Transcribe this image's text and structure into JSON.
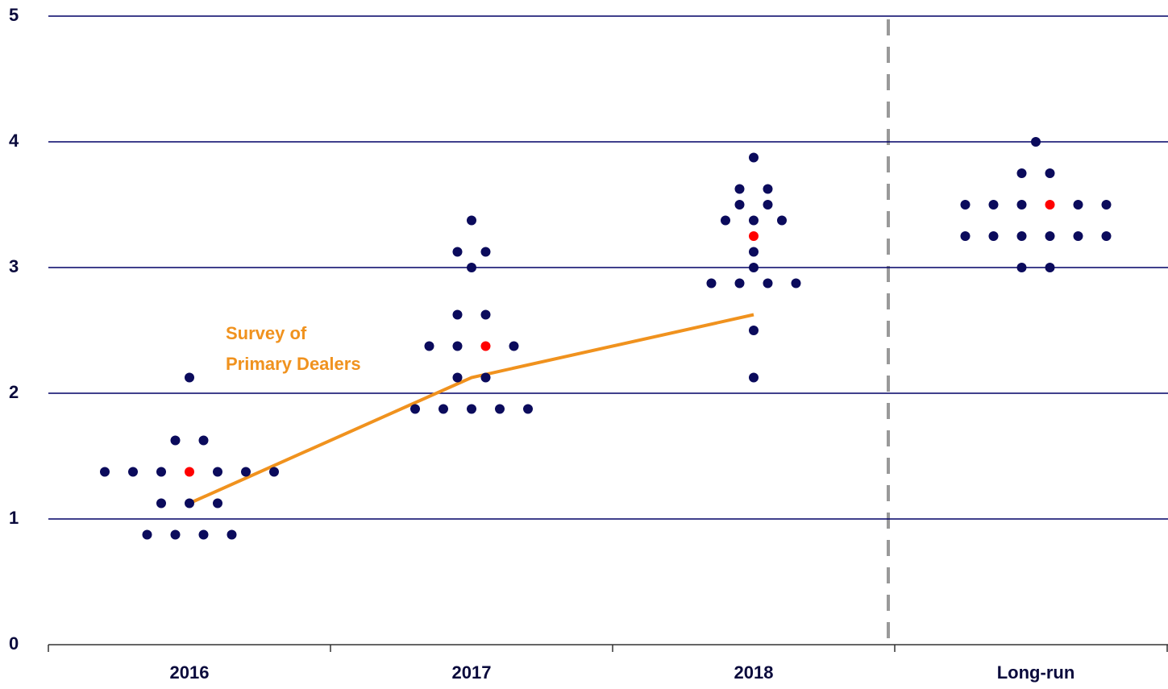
{
  "chart_data": {
    "type": "dot",
    "categories": [
      "2016",
      "2017",
      "2018",
      "Long-run"
    ],
    "dots": [
      [
        2.125,
        1.625,
        1.625,
        1.375,
        1.375,
        1.375,
        1.375,
        1.375,
        1.375,
        1.375,
        1.125,
        1.125,
        1.125,
        0.875,
        0.875,
        0.875,
        0.875
      ],
      [
        3.375,
        3.125,
        3.125,
        3.0,
        2.625,
        2.625,
        2.375,
        2.375,
        2.375,
        2.375,
        2.125,
        2.125,
        1.875,
        1.875,
        1.875,
        1.875,
        1.875
      ],
      [
        3.875,
        3.625,
        3.625,
        3.5,
        3.5,
        3.375,
        3.375,
        3.375,
        3.25,
        3.125,
        3.0,
        2.875,
        2.875,
        2.875,
        2.875,
        2.5,
        2.125
      ],
      [
        4.0,
        3.75,
        3.75,
        3.5,
        3.5,
        3.5,
        3.5,
        3.5,
        3.5,
        3.25,
        3.25,
        3.25,
        3.25,
        3.25,
        3.25,
        3.0,
        3.0
      ]
    ],
    "dot_color": "#0b0b5c",
    "medians": [
      1.375,
      2.375,
      3.25,
      3.5
    ],
    "median_color": "#ff0000",
    "survey": {
      "values": [
        1.125,
        2.125,
        2.625,
        null
      ],
      "color": "#f0921e",
      "annotation": [
        "Survey of",
        "Primary Dealers"
      ]
    },
    "ylim": [
      0,
      5
    ],
    "yticks": [
      0,
      1,
      2,
      3,
      4,
      5
    ],
    "grid": true
  }
}
